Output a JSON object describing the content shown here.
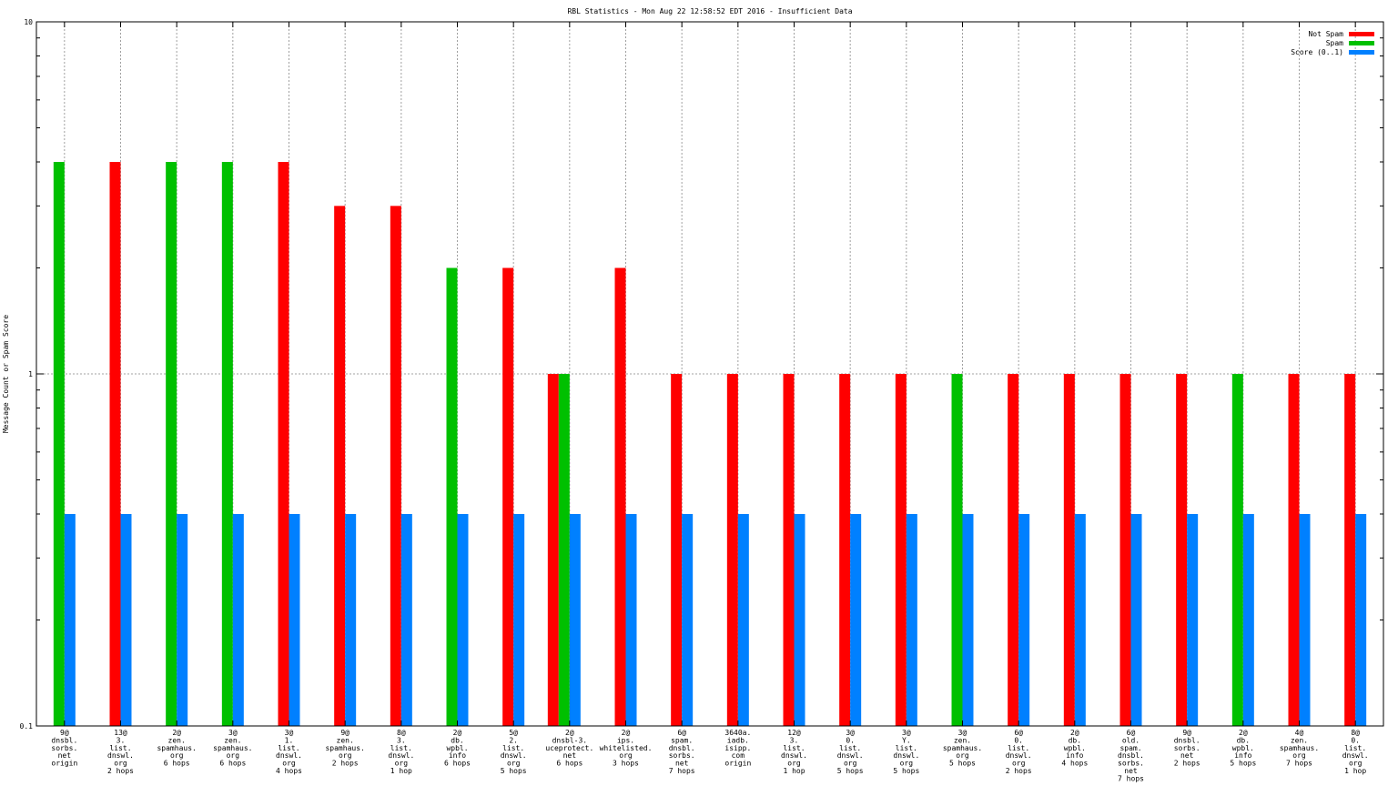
{
  "chart_data": {
    "type": "bar",
    "title": "RBL Statistics - Mon Aug 22 12:58:52 EDT 2016 - Insufficient Data",
    "xlabel": "",
    "ylabel": "Message Count or Spam Score",
    "yscale": "log",
    "ylim": [
      0.1,
      10
    ],
    "yticks": [
      "0.1",
      "1",
      "10"
    ],
    "grid": true,
    "legend_position": "top-right",
    "categories": [
      [
        "9@",
        "dnsbl.",
        "sorbs.",
        "net",
        "origin"
      ],
      [
        "13@",
        "3.",
        "list.",
        "dnswl.",
        "org",
        "2 hops"
      ],
      [
        "2@",
        "zen.",
        "spamhaus.",
        "org",
        "6 hops"
      ],
      [
        "3@",
        "zen.",
        "spamhaus.",
        "org",
        "6 hops"
      ],
      [
        "3@",
        "1.",
        "list.",
        "dnswl.",
        "org",
        "4 hops"
      ],
      [
        "9@",
        "zen.",
        "spamhaus.",
        "org",
        "2 hops"
      ],
      [
        "8@",
        "3.",
        "list.",
        "dnswl.",
        "org",
        "1 hop"
      ],
      [
        "2@",
        "db.",
        "wpbl.",
        "info",
        "6 hops"
      ],
      [
        "5@",
        "2.",
        "list.",
        "dnswl.",
        "org",
        "5 hops"
      ],
      [
        "2@",
        "dnsbl-3.",
        "uceprotect.",
        "net",
        "6 hops"
      ],
      [
        "2@",
        "ips.",
        "whitelisted.",
        "org",
        "3 hops"
      ],
      [
        "6@",
        "spam.",
        "dnsbl.",
        "sorbs.",
        "net",
        "7 hops"
      ],
      [
        "3640a.",
        "iadb.",
        "isipp.",
        "com",
        "origin"
      ],
      [
        "12@",
        "3.",
        "list.",
        "dnswl.",
        "org",
        "1 hop"
      ],
      [
        "3@",
        "0.",
        "list.",
        "dnswl.",
        "org",
        "5 hops"
      ],
      [
        "3@",
        "Y.",
        "list.",
        "dnswl.",
        "org",
        "5 hops"
      ],
      [
        "3@",
        "zen.",
        "spamhaus.",
        "org",
        "5 hops"
      ],
      [
        "6@",
        "0.",
        "list.",
        "dnswl.",
        "org",
        "2 hops"
      ],
      [
        "2@",
        "db.",
        "wpbl.",
        "info",
        "4 hops"
      ],
      [
        "6@",
        "old.",
        "spam.",
        "dnsbl.",
        "sorbs.",
        "net",
        "7 hops"
      ],
      [
        "9@",
        "dnsbl.",
        "sorbs.",
        "net",
        "2 hops"
      ],
      [
        "2@",
        "db.",
        "wpbl.",
        "info",
        "5 hops"
      ],
      [
        "4@",
        "zen.",
        "spamhaus.",
        "org",
        "7 hops"
      ],
      [
        "8@",
        "0.",
        "list.",
        "dnswl.",
        "org",
        "1 hop"
      ]
    ],
    "series": [
      {
        "name": "Not Spam",
        "color": "#ff0000",
        "values": [
          null,
          4,
          null,
          null,
          4,
          3,
          3,
          null,
          2,
          1,
          2,
          1,
          1,
          1,
          1,
          1,
          null,
          1,
          1,
          1,
          1,
          null,
          1,
          1
        ]
      },
      {
        "name": "Spam",
        "color": "#00c000",
        "values": [
          4,
          null,
          4,
          4,
          null,
          null,
          null,
          2,
          null,
          1,
          null,
          null,
          null,
          null,
          null,
          null,
          1,
          null,
          null,
          null,
          null,
          1,
          null,
          null
        ]
      },
      {
        "name": "Score (0..1)",
        "color": "#0080ff",
        "values": [
          0.4,
          0.4,
          0.4,
          0.4,
          0.4,
          0.4,
          0.4,
          0.4,
          0.4,
          0.4,
          0.4,
          0.4,
          0.4,
          0.4,
          0.4,
          0.4,
          0.4,
          0.4,
          0.4,
          0.4,
          0.4,
          0.4,
          0.4,
          0.4
        ]
      }
    ]
  }
}
